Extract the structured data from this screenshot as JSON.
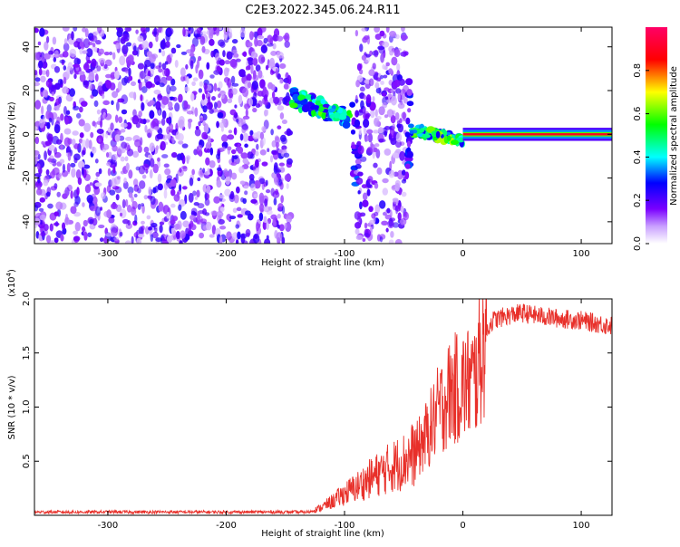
{
  "figure_title": "C2E3.2022.345.06.24.R11",
  "chart_data": [
    {
      "type": "heatmap",
      "title": "",
      "xlabel": "Height of straight line (km)",
      "ylabel": "Frequency (Hz)",
      "xlim": [
        -362,
        126
      ],
      "ylim": [
        -50,
        49
      ],
      "x_ticks": [
        -300,
        -200,
        -100,
        0,
        100
      ],
      "y_ticks": [
        -40,
        -20,
        0,
        20,
        40
      ],
      "x_tick_labels": [
        "-300",
        "-200",
        "-100",
        "0",
        "100"
      ],
      "y_tick_labels": [
        "-40",
        "-20",
        "0",
        "20",
        "40"
      ],
      "colorbar": {
        "label": "Normalized spectral amplitude",
        "range": [
          0,
          1
        ],
        "ticks": [
          0.0,
          0.2,
          0.4,
          0.6,
          0.8
        ],
        "tick_labels": [
          "0.0",
          "0.2",
          "0.4",
          "0.6",
          "0.8"
        ],
        "colormap": [
          "#ffffff",
          "#7a00ff",
          "#0000ff",
          "#00ffff",
          "#00ff00",
          "#ffff00",
          "#ff0000",
          "#ff0066"
        ]
      },
      "regions": [
        {
          "x": [
            -362,
            -145
          ],
          "freq": [
            -50,
            49
          ],
          "kind": "noise",
          "amplitude": 0.2
        },
        {
          "x": [
            -145,
            -95
          ],
          "freq": [
            0,
            17
          ],
          "kind": "signal",
          "amplitude": 0.55
        },
        {
          "x": [
            -95,
            -88
          ],
          "freq": [
            -28,
            15
          ],
          "kind": "signal",
          "amplitude": 0.3
        },
        {
          "x": [
            -90,
            -47
          ],
          "freq": [
            -50,
            49
          ],
          "kind": "noise",
          "amplitude": 0.2
        },
        {
          "x": [
            -47,
            -44
          ],
          "freq": [
            -16,
            26
          ],
          "kind": "signal",
          "amplitude": 0.3
        },
        {
          "x": [
            -44,
            0
          ],
          "freq": [
            -6,
            2
          ],
          "kind": "signal",
          "amplitude": 0.6
        },
        {
          "x": [
            0,
            126
          ],
          "freq": [
            -1,
            1
          ],
          "kind": "carrier",
          "amplitude": 0.9
        }
      ]
    },
    {
      "type": "line",
      "title": "",
      "xlabel": "Height of straight line (km)",
      "ylabel": "SNR (10 * v/v)",
      "y_multiplier": "(x10",
      "y_multiplier_exp": "4",
      "y_multiplier_close": ")",
      "xlim": [
        -362,
        126
      ],
      "ylim": [
        0,
        20000
      ],
      "x_ticks": [
        -300,
        -200,
        -100,
        0,
        100
      ],
      "y_ticks": [
        5000,
        10000,
        15000,
        20000
      ],
      "x_tick_labels": [
        "-300",
        "-200",
        "-100",
        "0",
        "100"
      ],
      "y_tick_labels": [
        "0.5",
        "1.0",
        "1.5",
        "2.0"
      ],
      "series": [
        {
          "color": "#e8302a",
          "x": [
            -362,
            -300,
            -200,
            -130,
            -120,
            -110,
            -100,
            -90,
            -80,
            -70,
            -60,
            -50,
            -40,
            -30,
            -20,
            -10,
            0,
            10,
            20,
            25,
            30,
            40,
            50,
            60,
            80,
            100,
            110,
            126
          ],
          "y": [
            300,
            300,
            300,
            300,
            700,
            1300,
            2000,
            2600,
            3300,
            3900,
            4500,
            5000,
            5800,
            7500,
            9800,
            11500,
            12000,
            12500,
            17000,
            18000,
            18200,
            18500,
            18700,
            18500,
            18200,
            18000,
            17800,
            17500
          ]
        }
      ]
    }
  ]
}
